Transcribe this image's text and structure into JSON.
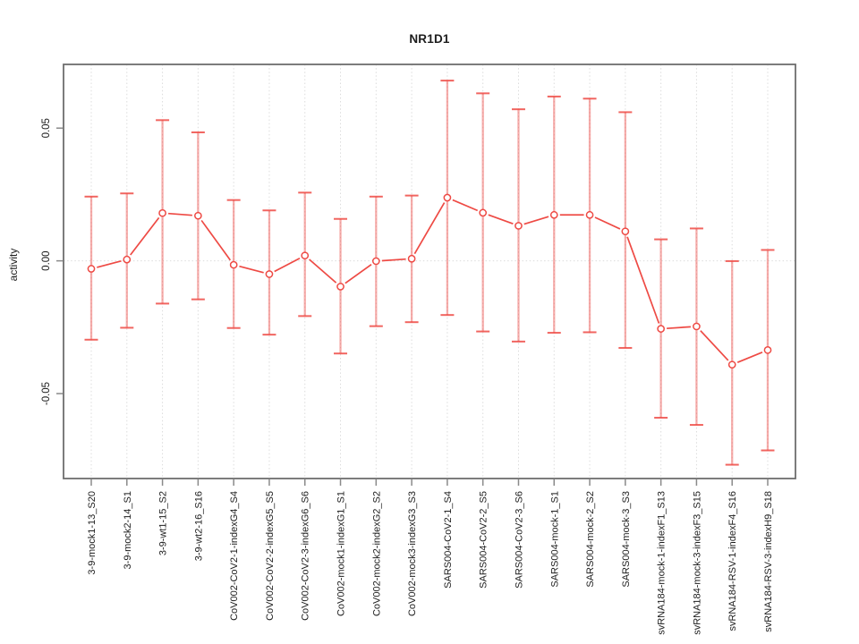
{
  "chart_data": {
    "type": "line",
    "subtype": "points-with-error-bars",
    "title": "NR1D1",
    "xlabel": "",
    "ylabel": "activity",
    "ylim": [
      -0.082,
      0.074
    ],
    "yticks": [
      {
        "value": 0.05,
        "label": "0.05"
      },
      {
        "value": 0.0,
        "label": "0.00"
      },
      {
        "value": -0.05,
        "label": "-0.05"
      }
    ],
    "grid": {
      "vertical_per_category": true,
      "zero_line": true,
      "style": "dotted"
    },
    "legend_position": "none",
    "marker": "open-circle",
    "categories": [
      "3-9-mock1-13_S20",
      "3-9-mock2-14_S1",
      "3-9-wt1-15_S2",
      "3-9-wt2-16_S16",
      "CoV002-CoV2-1-indexG4_S4",
      "CoV002-CoV2-2-indexG5_S5",
      "CoV002-CoV2-3-indexG6_S6",
      "CoV002-mock1-indexG1_S1",
      "CoV002-mock2-indexG2_S2",
      "CoV002-mock3-indexG3_S3",
      "SARS004-CoV2-1_S4",
      "SARS004-CoV2-2_S5",
      "SARS004-CoV2-3_S6",
      "SARS004-mock-1_S1",
      "SARS004-mock-2_S2",
      "SARS004-mock-3_S3",
      "svRNA184-mock-1-indexF1_S13",
      "svRNA184-mock-3-indexF3_S15",
      "svRNA184-RSV-1-indexF4_S16",
      "svRNA184-RSV-3-indexH9_S18"
    ],
    "series": [
      {
        "name": "activity",
        "values": [
          -0.003,
          0.0005,
          0.018,
          0.017,
          -0.0015,
          -0.005,
          0.002,
          -0.0097,
          -0.0001,
          0.0008,
          0.0238,
          0.0181,
          0.0132,
          0.0173,
          0.0173,
          0.0111,
          -0.0256,
          -0.0247,
          -0.0391,
          -0.0336
        ],
        "ci_high": [
          0.0242,
          0.0254,
          0.053,
          0.0484,
          0.0229,
          0.019,
          0.0257,
          0.0158,
          0.0242,
          0.0246,
          0.0679,
          0.0631,
          0.0571,
          0.0619,
          0.0611,
          0.056,
          0.0081,
          0.0122,
          -0.0001,
          0.0041
        ],
        "ci_low": [
          -0.0297,
          -0.0252,
          -0.0161,
          -0.0145,
          -0.0253,
          -0.0278,
          -0.0208,
          -0.0349,
          -0.0246,
          -0.0231,
          -0.0204,
          -0.0266,
          -0.0304,
          -0.0271,
          -0.0269,
          -0.0328,
          -0.0591,
          -0.0618,
          -0.0768,
          -0.0714
        ]
      }
    ],
    "colors": {
      "line": "#ee4a44",
      "marker": "#ee4a44",
      "marker_fill": "#ffffff",
      "error_bar": "rgba(238,74,68,0.45)",
      "error_cap": "rgba(238,74,68,0.85)",
      "grid": "#dcdcdc",
      "axis": "#6e6e6e",
      "tick": "#8a8a8a",
      "text": "#1d1d1d",
      "background": "#ffffff"
    }
  }
}
